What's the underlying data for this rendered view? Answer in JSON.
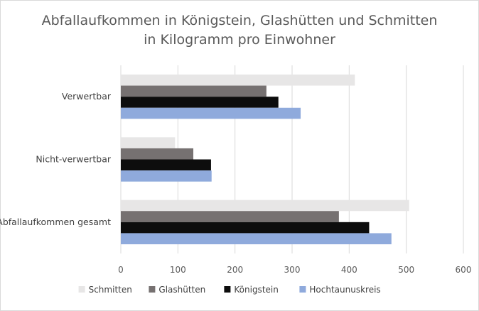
{
  "chart_data": {
    "type": "bar",
    "orientation": "horizontal",
    "title": "Abfallaufkommen in Königstein, Glashütten und Schmitten",
    "subtitle": "in Kilogramm pro Einwohner",
    "categories": [
      "Verwertbar",
      "Nicht-verwertbar",
      "Abfallaufkommen gesamt"
    ],
    "series": [
      {
        "name": "Schmitten",
        "color": "#e7e6e6",
        "values": [
          410,
          95,
          505
        ]
      },
      {
        "name": "Glashütten",
        "color": "#767171",
        "values": [
          255,
          127,
          382
        ]
      },
      {
        "name": "Königstein",
        "color": "#0d0d0d",
        "values": [
          276,
          158,
          435
        ]
      },
      {
        "name": "Hochtaunuskreis",
        "color": "#8faadc",
        "values": [
          315,
          159,
          474
        ]
      }
    ],
    "xlim": [
      0,
      600
    ],
    "xticks": [
      0,
      100,
      200,
      300,
      400,
      500,
      600
    ],
    "grid": true,
    "legend_position": "bottom"
  }
}
